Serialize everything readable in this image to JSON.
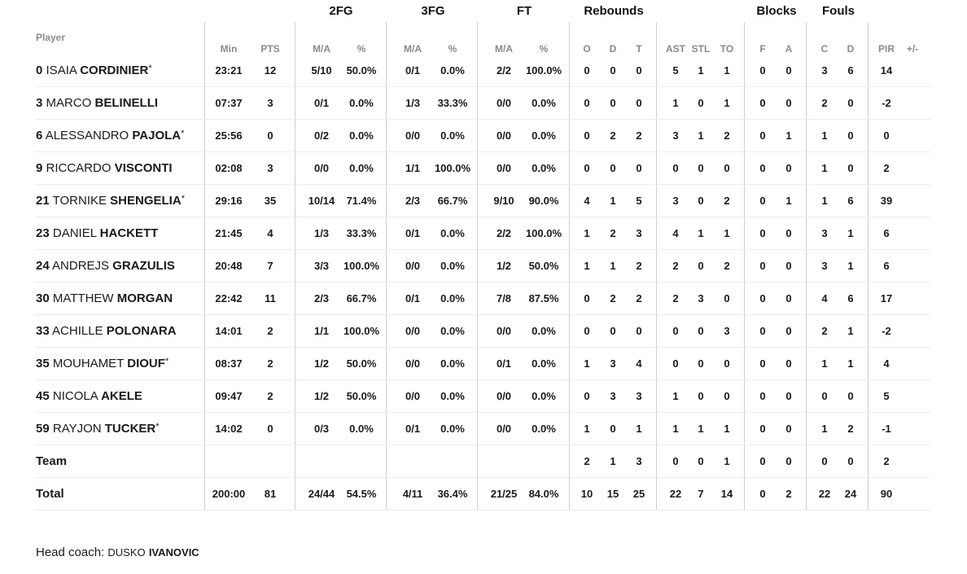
{
  "groups": {
    "fg2": "2FG",
    "fg3": "3FG",
    "ft": "FT",
    "rebounds": "Rebounds",
    "blocks": "Blocks",
    "fouls": "Fouls"
  },
  "headers": {
    "player": "Player",
    "min": "Min",
    "pts": "PTS",
    "fg2_ma": "M/A",
    "fg2_pct": "%",
    "fg3_ma": "M/A",
    "fg3_pct": "%",
    "ft_ma": "M/A",
    "ft_pct": "%",
    "reb_o": "O",
    "reb_d": "D",
    "reb_t": "T",
    "ast": "AST",
    "stl": "STL",
    "to": "TO",
    "blk_f": "F",
    "blk_a": "A",
    "foul_c": "C",
    "foul_d": "D",
    "pir": "PIR",
    "pm": "+/-"
  },
  "players": [
    {
      "number": "0",
      "first": "ISAIA",
      "last": "CORDINIER",
      "starter": "*",
      "stats": [
        "23:21",
        "12",
        "5/10",
        "50.0%",
        "0/1",
        "0.0%",
        "2/2",
        "100.0%",
        "0",
        "0",
        "0",
        "5",
        "1",
        "1",
        "0",
        "0",
        "3",
        "6",
        "14",
        ""
      ]
    },
    {
      "number": "3",
      "first": "MARCO",
      "last": "BELINELLI",
      "starter": "",
      "stats": [
        "07:37",
        "3",
        "0/1",
        "0.0%",
        "1/3",
        "33.3%",
        "0/0",
        "0.0%",
        "0",
        "0",
        "0",
        "1",
        "0",
        "1",
        "0",
        "0",
        "2",
        "0",
        "-2",
        ""
      ]
    },
    {
      "number": "6",
      "first": "ALESSANDRO",
      "last": "PAJOLA",
      "starter": "*",
      "stats": [
        "25:56",
        "0",
        "0/2",
        "0.0%",
        "0/0",
        "0.0%",
        "0/0",
        "0.0%",
        "0",
        "2",
        "2",
        "3",
        "1",
        "2",
        "0",
        "1",
        "1",
        "0",
        "0",
        ""
      ]
    },
    {
      "number": "9",
      "first": "RICCARDO",
      "last": "VISCONTI",
      "starter": "",
      "stats": [
        "02:08",
        "3",
        "0/0",
        "0.0%",
        "1/1",
        "100.0%",
        "0/0",
        "0.0%",
        "0",
        "0",
        "0",
        "0",
        "0",
        "0",
        "0",
        "0",
        "1",
        "0",
        "2",
        ""
      ]
    },
    {
      "number": "21",
      "first": "TORNIKE",
      "last": "SHENGELIA",
      "starter": "*",
      "stats": [
        "29:16",
        "35",
        "10/14",
        "71.4%",
        "2/3",
        "66.7%",
        "9/10",
        "90.0%",
        "4",
        "1",
        "5",
        "3",
        "0",
        "2",
        "0",
        "1",
        "1",
        "6",
        "39",
        ""
      ]
    },
    {
      "number": "23",
      "first": "DANIEL",
      "last": "HACKETT",
      "starter": "",
      "stats": [
        "21:45",
        "4",
        "1/3",
        "33.3%",
        "0/1",
        "0.0%",
        "2/2",
        "100.0%",
        "1",
        "2",
        "3",
        "4",
        "1",
        "1",
        "0",
        "0",
        "3",
        "1",
        "6",
        ""
      ]
    },
    {
      "number": "24",
      "first": "ANDREJS",
      "last": "GRAZULIS",
      "starter": "",
      "stats": [
        "20:48",
        "7",
        "3/3",
        "100.0%",
        "0/0",
        "0.0%",
        "1/2",
        "50.0%",
        "1",
        "1",
        "2",
        "2",
        "0",
        "2",
        "0",
        "0",
        "3",
        "1",
        "6",
        ""
      ]
    },
    {
      "number": "30",
      "first": "MATTHEW",
      "last": "MORGAN",
      "starter": "",
      "stats": [
        "22:42",
        "11",
        "2/3",
        "66.7%",
        "0/1",
        "0.0%",
        "7/8",
        "87.5%",
        "0",
        "2",
        "2",
        "2",
        "3",
        "0",
        "0",
        "0",
        "4",
        "6",
        "17",
        ""
      ]
    },
    {
      "number": "33",
      "first": "ACHILLE",
      "last": "POLONARA",
      "starter": "",
      "stats": [
        "14:01",
        "2",
        "1/1",
        "100.0%",
        "0/0",
        "0.0%",
        "0/0",
        "0.0%",
        "0",
        "0",
        "0",
        "0",
        "0",
        "3",
        "0",
        "0",
        "2",
        "1",
        "-2",
        ""
      ]
    },
    {
      "number": "35",
      "first": "MOUHAMET",
      "last": "DIOUF",
      "starter": "*",
      "stats": [
        "08:37",
        "2",
        "1/2",
        "50.0%",
        "0/0",
        "0.0%",
        "0/1",
        "0.0%",
        "1",
        "3",
        "4",
        "0",
        "0",
        "0",
        "0",
        "0",
        "1",
        "1",
        "4",
        ""
      ]
    },
    {
      "number": "45",
      "first": "NICOLA",
      "last": "AKELE",
      "starter": "",
      "stats": [
        "09:47",
        "2",
        "1/2",
        "50.0%",
        "0/0",
        "0.0%",
        "0/0",
        "0.0%",
        "0",
        "3",
        "3",
        "1",
        "0",
        "0",
        "0",
        "0",
        "0",
        "0",
        "5",
        ""
      ]
    },
    {
      "number": "59",
      "first": "RAYJON",
      "last": "TUCKER",
      "starter": "*",
      "stats": [
        "14:02",
        "0",
        "0/3",
        "0.0%",
        "0/1",
        "0.0%",
        "0/0",
        "0.0%",
        "1",
        "0",
        "1",
        "1",
        "1",
        "1",
        "0",
        "0",
        "1",
        "2",
        "-1",
        ""
      ]
    }
  ],
  "team_row": {
    "label": "Team",
    "stats": [
      "",
      "",
      "",
      "",
      "",
      "",
      "",
      "",
      "2",
      "1",
      "3",
      "0",
      "0",
      "1",
      "0",
      "0",
      "0",
      "0",
      "2",
      ""
    ]
  },
  "total_row": {
    "label": "Total",
    "stats": [
      "200:00",
      "81",
      "24/44",
      "54.5%",
      "4/11",
      "36.4%",
      "21/25",
      "84.0%",
      "10",
      "15",
      "25",
      "22",
      "7",
      "14",
      "0",
      "2",
      "22",
      "24",
      "90",
      ""
    ]
  },
  "coach": {
    "prefix": "Head coach:",
    "first": "DUSKO",
    "last": "IVANOVIC"
  }
}
